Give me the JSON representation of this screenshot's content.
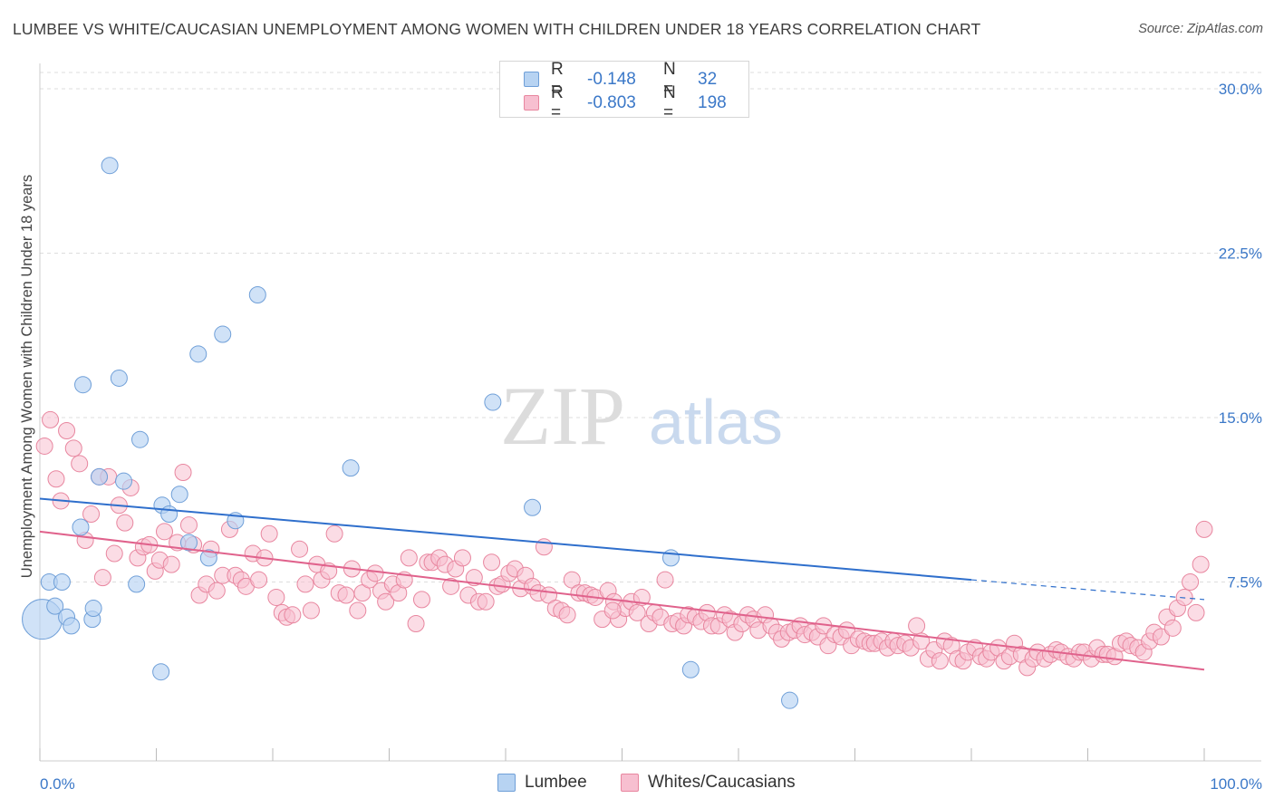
{
  "title": "LUMBEE VS WHITE/CAUCASIAN UNEMPLOYMENT AMONG WOMEN WITH CHILDREN UNDER 18 YEARS CORRELATION CHART",
  "source": "Source: ZipAtlas.com",
  "watermark": {
    "zip": "ZIP",
    "atlas": "atlas"
  },
  "legend_top": {
    "rows": [
      {
        "r_label": "R =",
        "r_value": "-0.148",
        "n_label": "N =",
        "n_value": "32"
      },
      {
        "r_label": "R =",
        "r_value": "-0.803",
        "n_label": "N =",
        "n_value": "198"
      }
    ]
  },
  "legend_bottom": {
    "items": [
      "Lumbee",
      "Whites/Caucasians"
    ]
  },
  "colors": {
    "lumbee_fill": "#b7d3f2",
    "lumbee_stroke": "#6f9fd8",
    "lumbee_line": "#2f6fcc",
    "white_fill": "#f7bfd0",
    "white_stroke": "#e8869f",
    "white_line": "#e0628c",
    "tick_label": "#3b78c8",
    "grid": "#dddddd"
  },
  "chart_data": {
    "type": "scatter",
    "title": "LUMBEE VS WHITE/CAUCASIAN UNEMPLOYMENT AMONG WOMEN WITH CHILDREN UNDER 18 YEARS CORRELATION CHART",
    "xlabel": "",
    "ylabel": "Unemployment Among Women with Children Under 18 years",
    "xlim": [
      0,
      100
    ],
    "ylim": [
      0,
      30
    ],
    "x_tick_labels": [
      "0.0%",
      "100.0%"
    ],
    "y_ticks": [
      7.5,
      15.0,
      22.5,
      30.0
    ],
    "y_tick_labels": [
      "7.5%",
      "15.0%",
      "22.5%",
      "30.0%"
    ],
    "grid": "horizontal dashed",
    "series": [
      {
        "name": "Lumbee",
        "r": -0.148,
        "n": 32,
        "trend": {
          "x0": 0,
          "y0": 11.3,
          "x1": 80,
          "y1": 7.6,
          "dashed_to_x": 100,
          "dashed_to_y": 6.7
        },
        "points": [
          [
            0.2,
            5.8
          ],
          [
            0.8,
            7.5
          ],
          [
            1.3,
            6.4
          ],
          [
            1.9,
            7.5
          ],
          [
            2.3,
            5.9
          ],
          [
            2.7,
            5.5
          ],
          [
            3.5,
            10.0
          ],
          [
            3.7,
            16.5
          ],
          [
            4.5,
            5.8
          ],
          [
            4.6,
            6.3
          ],
          [
            5.1,
            12.3
          ],
          [
            6.0,
            26.5
          ],
          [
            6.8,
            16.8
          ],
          [
            7.2,
            12.1
          ],
          [
            8.3,
            7.4
          ],
          [
            8.6,
            14.0
          ],
          [
            10.4,
            3.4
          ],
          [
            10.5,
            11.0
          ],
          [
            11.1,
            10.6
          ],
          [
            12.0,
            11.5
          ],
          [
            12.8,
            9.3
          ],
          [
            13.6,
            17.9
          ],
          [
            14.5,
            8.6
          ],
          [
            15.7,
            18.8
          ],
          [
            16.8,
            10.3
          ],
          [
            18.7,
            20.6
          ],
          [
            26.7,
            12.7
          ],
          [
            38.9,
            15.7
          ],
          [
            42.3,
            10.9
          ],
          [
            54.2,
            8.6
          ],
          [
            55.9,
            3.5
          ],
          [
            64.4,
            2.1
          ]
        ]
      },
      {
        "name": "Whites/Caucasians",
        "r": -0.803,
        "n": 198,
        "trend": {
          "x0": 0,
          "y0": 9.8,
          "x1": 100,
          "y1": 3.5
        },
        "points": [
          [
            0.4,
            13.7
          ],
          [
            0.9,
            14.9
          ],
          [
            1.4,
            12.2
          ],
          [
            1.8,
            11.2
          ],
          [
            2.3,
            14.4
          ],
          [
            2.9,
            13.6
          ],
          [
            3.4,
            12.9
          ],
          [
            3.9,
            9.4
          ],
          [
            4.4,
            10.6
          ],
          [
            5.1,
            12.3
          ],
          [
            5.4,
            7.7
          ],
          [
            5.9,
            12.3
          ],
          [
            6.4,
            8.8
          ],
          [
            6.8,
            11.0
          ],
          [
            7.3,
            10.2
          ],
          [
            7.8,
            11.8
          ],
          [
            8.4,
            8.6
          ],
          [
            8.9,
            9.1
          ],
          [
            9.4,
            9.2
          ],
          [
            9.9,
            8.0
          ],
          [
            10.3,
            8.5
          ],
          [
            10.7,
            9.8
          ],
          [
            11.3,
            8.3
          ],
          [
            11.8,
            9.3
          ],
          [
            12.3,
            12.5
          ],
          [
            12.8,
            10.1
          ],
          [
            13.2,
            9.2
          ],
          [
            13.7,
            6.9
          ],
          [
            14.3,
            7.4
          ],
          [
            14.7,
            9.0
          ],
          [
            15.2,
            7.1
          ],
          [
            15.7,
            7.8
          ],
          [
            16.3,
            9.9
          ],
          [
            16.8,
            7.8
          ],
          [
            17.3,
            7.6
          ],
          [
            17.7,
            7.3
          ],
          [
            18.3,
            8.8
          ],
          [
            18.8,
            7.6
          ],
          [
            19.3,
            8.6
          ],
          [
            19.7,
            9.7
          ],
          [
            20.3,
            6.8
          ],
          [
            20.8,
            6.1
          ],
          [
            21.2,
            5.9
          ],
          [
            21.7,
            6.0
          ],
          [
            22.3,
            9.0
          ],
          [
            22.8,
            7.4
          ],
          [
            23.3,
            6.2
          ],
          [
            23.8,
            8.3
          ],
          [
            24.2,
            7.6
          ],
          [
            24.8,
            8.0
          ],
          [
            25.3,
            9.7
          ],
          [
            25.7,
            7.0
          ],
          [
            26.3,
            6.9
          ],
          [
            26.8,
            8.1
          ],
          [
            27.3,
            6.2
          ],
          [
            27.7,
            7.0
          ],
          [
            28.3,
            7.6
          ],
          [
            28.8,
            7.9
          ],
          [
            29.3,
            7.1
          ],
          [
            29.7,
            6.6
          ],
          [
            30.3,
            7.4
          ],
          [
            30.8,
            7.0
          ],
          [
            31.3,
            7.6
          ],
          [
            31.7,
            8.6
          ],
          [
            32.3,
            5.6
          ],
          [
            32.8,
            6.7
          ],
          [
            33.3,
            8.4
          ],
          [
            33.7,
            8.4
          ],
          [
            34.3,
            8.6
          ],
          [
            34.8,
            8.3
          ],
          [
            35.3,
            7.3
          ],
          [
            35.7,
            8.1
          ],
          [
            36.3,
            8.6
          ],
          [
            36.8,
            6.9
          ],
          [
            37.3,
            7.7
          ],
          [
            37.7,
            6.6
          ],
          [
            38.3,
            6.6
          ],
          [
            38.8,
            8.4
          ],
          [
            39.3,
            7.3
          ],
          [
            39.7,
            7.4
          ],
          [
            40.3,
            7.9
          ],
          [
            40.8,
            8.1
          ],
          [
            41.3,
            7.2
          ],
          [
            41.7,
            7.8
          ],
          [
            42.3,
            7.3
          ],
          [
            42.8,
            7.0
          ],
          [
            43.3,
            9.1
          ],
          [
            43.7,
            6.9
          ],
          [
            44.3,
            6.3
          ],
          [
            44.8,
            6.2
          ],
          [
            45.3,
            6.0
          ],
          [
            45.7,
            7.6
          ],
          [
            46.3,
            7.0
          ],
          [
            46.8,
            7.0
          ],
          [
            47.3,
            6.9
          ],
          [
            47.7,
            6.8
          ],
          [
            48.3,
            5.8
          ],
          [
            48.8,
            7.1
          ],
          [
            49.3,
            6.6
          ],
          [
            49.7,
            5.8
          ],
          [
            50.3,
            6.3
          ],
          [
            50.8,
            6.6
          ],
          [
            51.3,
            6.1
          ],
          [
            51.7,
            6.8
          ],
          [
            52.3,
            5.6
          ],
          [
            52.8,
            6.1
          ],
          [
            53.3,
            5.9
          ],
          [
            53.7,
            7.6
          ],
          [
            54.3,
            5.6
          ],
          [
            54.8,
            5.7
          ],
          [
            55.3,
            5.5
          ],
          [
            55.7,
            6.0
          ],
          [
            56.3,
            5.9
          ],
          [
            56.8,
            5.7
          ],
          [
            57.3,
            6.1
          ],
          [
            57.7,
            5.5
          ],
          [
            58.3,
            5.5
          ],
          [
            58.8,
            6.0
          ],
          [
            59.3,
            5.8
          ],
          [
            59.7,
            5.2
          ],
          [
            60.3,
            5.6
          ],
          [
            60.8,
            6.0
          ],
          [
            61.3,
            5.8
          ],
          [
            61.7,
            5.3
          ],
          [
            62.3,
            6.0
          ],
          [
            62.8,
            5.5
          ],
          [
            63.3,
            5.2
          ],
          [
            63.7,
            4.9
          ],
          [
            64.3,
            5.2
          ],
          [
            64.8,
            5.3
          ],
          [
            65.3,
            5.5
          ],
          [
            65.7,
            5.1
          ],
          [
            66.3,
            5.2
          ],
          [
            66.8,
            5.0
          ],
          [
            67.3,
            5.5
          ],
          [
            67.7,
            4.6
          ],
          [
            68.3,
            5.1
          ],
          [
            68.8,
            5.0
          ],
          [
            69.3,
            5.3
          ],
          [
            69.7,
            4.6
          ],
          [
            70.3,
            4.9
          ],
          [
            70.8,
            4.8
          ],
          [
            71.3,
            4.7
          ],
          [
            71.7,
            4.7
          ],
          [
            72.3,
            4.8
          ],
          [
            72.8,
            4.5
          ],
          [
            73.3,
            4.8
          ],
          [
            73.7,
            4.6
          ],
          [
            74.3,
            4.7
          ],
          [
            74.8,
            4.5
          ],
          [
            75.3,
            5.5
          ],
          [
            75.7,
            4.8
          ],
          [
            76.3,
            4.0
          ],
          [
            76.8,
            4.4
          ],
          [
            77.3,
            3.9
          ],
          [
            77.7,
            4.8
          ],
          [
            78.3,
            4.6
          ],
          [
            78.8,
            4.0
          ],
          [
            79.3,
            3.9
          ],
          [
            79.7,
            4.3
          ],
          [
            80.3,
            4.5
          ],
          [
            80.8,
            4.1
          ],
          [
            81.3,
            4.0
          ],
          [
            81.7,
            4.3
          ],
          [
            82.3,
            4.5
          ],
          [
            82.8,
            3.9
          ],
          [
            83.3,
            4.1
          ],
          [
            83.7,
            4.7
          ],
          [
            84.3,
            4.2
          ],
          [
            84.8,
            3.6
          ],
          [
            85.3,
            4.0
          ],
          [
            85.7,
            4.3
          ],
          [
            86.3,
            4.0
          ],
          [
            86.8,
            4.2
          ],
          [
            87.3,
            4.4
          ],
          [
            87.7,
            4.3
          ],
          [
            88.3,
            4.1
          ],
          [
            88.8,
            4.0
          ],
          [
            89.3,
            4.3
          ],
          [
            89.7,
            4.3
          ],
          [
            90.3,
            4.0
          ],
          [
            90.8,
            4.5
          ],
          [
            91.3,
            4.2
          ],
          [
            91.7,
            4.2
          ],
          [
            92.3,
            4.1
          ],
          [
            92.8,
            4.7
          ],
          [
            93.3,
            4.8
          ],
          [
            93.7,
            4.6
          ],
          [
            94.3,
            4.5
          ],
          [
            94.8,
            4.3
          ],
          [
            95.3,
            4.8
          ],
          [
            95.7,
            5.2
          ],
          [
            96.3,
            5.0
          ],
          [
            96.8,
            5.9
          ],
          [
            97.3,
            5.4
          ],
          [
            97.7,
            6.3
          ],
          [
            98.3,
            6.8
          ],
          [
            98.8,
            7.5
          ],
          [
            99.3,
            6.1
          ],
          [
            99.7,
            8.3
          ],
          [
            100.0,
            9.9
          ],
          [
            49.2,
            6.2
          ]
        ]
      }
    ]
  }
}
